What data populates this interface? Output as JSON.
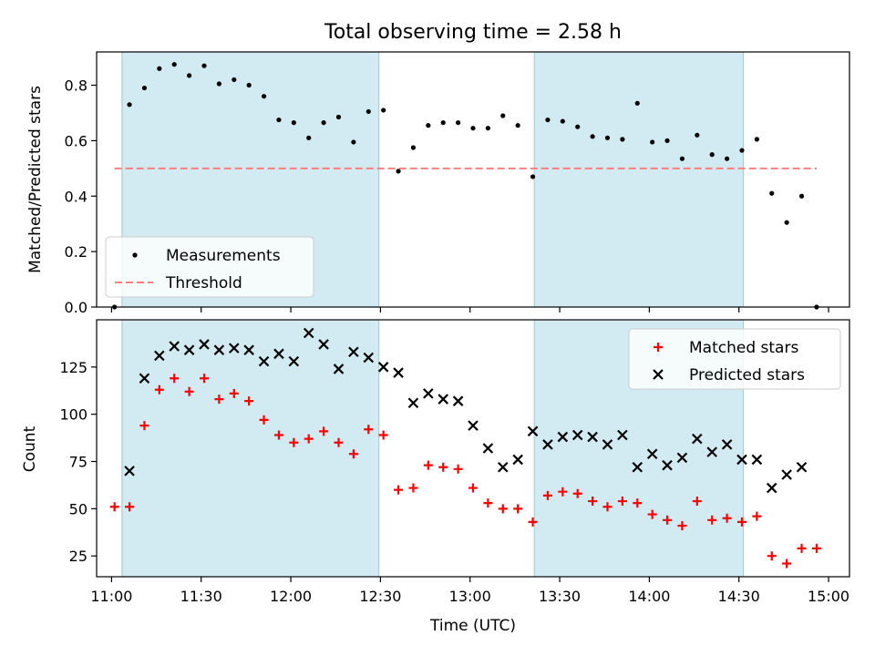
{
  "chart_data": {
    "type": "scatter",
    "title": "Total observing time = 2.58 h",
    "xlabel": "Time (UTC)",
    "x_tick_labels": [
      "11:00",
      "11:30",
      "12:00",
      "12:30",
      "13:00",
      "13:30",
      "14:00",
      "14:30",
      "15:00"
    ],
    "x_tick_values": [
      0,
      30,
      60,
      90,
      120,
      150,
      180,
      210,
      240
    ],
    "x_tick_unit": "minutes after 11:00 UTC",
    "xlim": [
      -5,
      247
    ],
    "shaded_spans": [
      [
        3.5,
        89.5
      ],
      [
        141.5,
        211.5
      ]
    ],
    "shade_color": "#add8e6",
    "panels": [
      {
        "name": "ratio",
        "ylabel": "Matched/Predicted stars",
        "ylim": [
          0,
          0.92
        ],
        "y_ticks": [
          0.0,
          0.2,
          0.4,
          0.6,
          0.8
        ],
        "y_tick_labels": [
          "0.0",
          "0.2",
          "0.4",
          "0.6",
          "0.8"
        ],
        "legend_position": "lower-left",
        "series": [
          {
            "name": "Measurements",
            "marker": "dot",
            "color": "#000000",
            "x": [
              1,
              6,
              11,
              16,
              21,
              26,
              31,
              36,
              41,
              46,
              51,
              56,
              61,
              66,
              71,
              76,
              81,
              86,
              91,
              96,
              101,
              106,
              111,
              116,
              121,
              126,
              131,
              136,
              141,
              146,
              151,
              156,
              161,
              166,
              171,
              176,
              181,
              186,
              191,
              196,
              201,
              206,
              211,
              216,
              221,
              226,
              231,
              236
            ],
            "y": [
              0.0,
              0.73,
              0.79,
              0.86,
              0.875,
              0.835,
              0.87,
              0.805,
              0.82,
              0.8,
              0.76,
              0.675,
              0.665,
              0.61,
              0.665,
              0.685,
              0.595,
              0.705,
              0.71,
              0.49,
              0.575,
              0.655,
              0.665,
              0.665,
              0.645,
              0.645,
              0.69,
              0.655,
              0.47,
              0.675,
              0.67,
              0.65,
              0.615,
              0.61,
              0.605,
              0.735,
              0.595,
              0.6,
              0.535,
              0.62,
              0.55,
              0.535,
              0.565,
              0.605,
              0.41,
              0.305,
              0.4,
              0.0
            ]
          },
          {
            "name": "Threshold",
            "marker": "dashed-line",
            "color": "#ff7f7f",
            "x": [
              1,
              236
            ],
            "y": [
              0.5,
              0.5
            ]
          }
        ]
      },
      {
        "name": "counts",
        "ylabel": "Count",
        "ylim": [
          14,
          150
        ],
        "y_ticks": [
          25,
          50,
          75,
          100,
          125
        ],
        "y_tick_labels": [
          "25",
          "50",
          "75",
          "100",
          "125"
        ],
        "legend_position": "top-right",
        "series": [
          {
            "name": "Matched stars",
            "marker": "plus",
            "color": "#ff0000",
            "x": [
              1,
              6,
              11,
              16,
              21,
              26,
              31,
              36,
              41,
              46,
              51,
              56,
              61,
              66,
              71,
              76,
              81,
              86,
              91,
              96,
              101,
              106,
              111,
              116,
              121,
              126,
              131,
              136,
              141,
              146,
              151,
              156,
              161,
              166,
              171,
              176,
              181,
              186,
              191,
              196,
              201,
              206,
              211,
              216,
              221,
              226,
              231,
              236
            ],
            "y": [
              51,
              51,
              94,
              113,
              119,
              112,
              119,
              108,
              111,
              107,
              97,
              89,
              85,
              87,
              91,
              85,
              79,
              92,
              89,
              60,
              61,
              73,
              72,
              71,
              61,
              53,
              50,
              50,
              43,
              57,
              59,
              58,
              54,
              51,
              54,
              53,
              47,
              44,
              41,
              54,
              44,
              45,
              43,
              46,
              25,
              21,
              29,
              29
            ]
          },
          {
            "name": "Predicted stars",
            "marker": "x",
            "color": "#000000",
            "x": [
              6,
              11,
              16,
              21,
              26,
              31,
              36,
              41,
              46,
              51,
              56,
              61,
              66,
              71,
              76,
              81,
              86,
              91,
              96,
              101,
              106,
              111,
              116,
              121,
              126,
              131,
              136,
              141,
              146,
              151,
              156,
              161,
              166,
              171,
              176,
              181,
              186,
              191,
              196,
              201,
              206,
              211,
              216,
              221,
              226,
              231
            ],
            "y": [
              70,
              119,
              131,
              136,
              134,
              137,
              134,
              135,
              134,
              128,
              132,
              128,
              143,
              137,
              124,
              133,
              130,
              125,
              122,
              106,
              111,
              108,
              107,
              94,
              82,
              72,
              76,
              91,
              84,
              88,
              89,
              88,
              84,
              89,
              72,
              79,
              73,
              77,
              87,
              80,
              84,
              76,
              76,
              61,
              68,
              72
            ]
          }
        ]
      }
    ]
  }
}
